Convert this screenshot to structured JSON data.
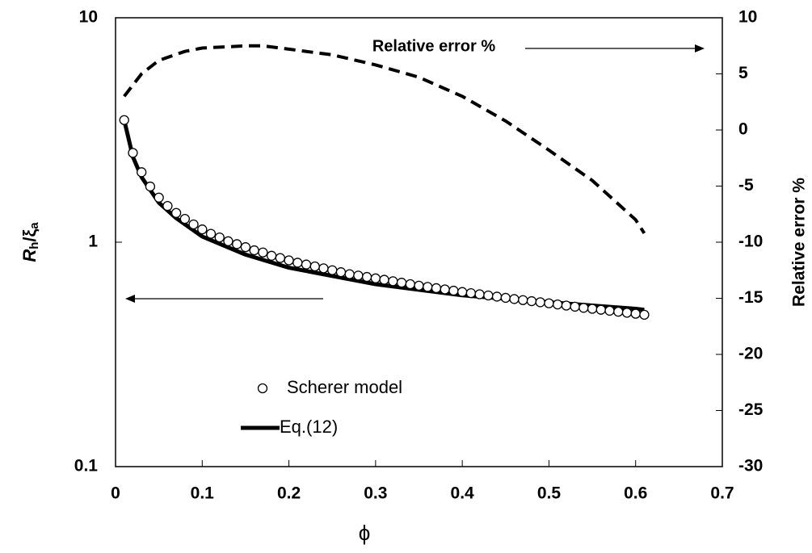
{
  "chart_data": {
    "type": "line",
    "xlabel": "ϕ",
    "ylabel": [
      "R",
      "h",
      "/ξ",
      "a"
    ],
    "y2label": "Relative error %",
    "annotations": [
      "Relative error %"
    ],
    "xlim": [
      0,
      0.7
    ],
    "xticks": [
      0,
      0.1,
      0.2,
      0.3,
      0.4,
      0.5,
      0.6,
      0.7
    ],
    "ylim": [
      0.1,
      10
    ],
    "yticks": [
      0.1,
      1,
      10
    ],
    "ylog": true,
    "y2lim": [
      -30,
      10
    ],
    "y2ticks": [
      -30,
      -25,
      -20,
      -15,
      -10,
      -5,
      0,
      5,
      10
    ],
    "legend": "lower-center",
    "series": [
      {
        "name": "Scherer model",
        "type": "scatter",
        "color": "#000000",
        "x": [
          0.01,
          0.02,
          0.03,
          0.04,
          0.05,
          0.06,
          0.07,
          0.08,
          0.09,
          0.1,
          0.11,
          0.12,
          0.13,
          0.14,
          0.15,
          0.16,
          0.17,
          0.18,
          0.19,
          0.2,
          0.21,
          0.22,
          0.23,
          0.24,
          0.25,
          0.26,
          0.27,
          0.28,
          0.29,
          0.3,
          0.31,
          0.32,
          0.33,
          0.34,
          0.35,
          0.36,
          0.37,
          0.38,
          0.39,
          0.4,
          0.41,
          0.42,
          0.43,
          0.44,
          0.45,
          0.46,
          0.47,
          0.48,
          0.49,
          0.5,
          0.51,
          0.52,
          0.53,
          0.54,
          0.55,
          0.56,
          0.57,
          0.58,
          0.59,
          0.6,
          0.61
        ],
        "values": [
          3.5,
          2.5,
          2.05,
          1.77,
          1.58,
          1.45,
          1.35,
          1.27,
          1.2,
          1.14,
          1.09,
          1.05,
          1.01,
          0.98,
          0.95,
          0.92,
          0.9,
          0.87,
          0.85,
          0.83,
          0.81,
          0.795,
          0.78,
          0.765,
          0.75,
          0.735,
          0.72,
          0.71,
          0.7,
          0.69,
          0.68,
          0.67,
          0.66,
          0.65,
          0.64,
          0.632,
          0.624,
          0.616,
          0.608,
          0.6,
          0.593,
          0.586,
          0.579,
          0.572,
          0.565,
          0.558,
          0.552,
          0.546,
          0.54,
          0.534,
          0.528,
          0.522,
          0.516,
          0.51,
          0.505,
          0.5,
          0.495,
          0.49,
          0.485,
          0.48,
          0.475
        ]
      },
      {
        "name": "Eq.(12)",
        "type": "line",
        "color": "#000000",
        "x": [
          0.01,
          0.02,
          0.03,
          0.05,
          0.07,
          0.1,
          0.15,
          0.2,
          0.3,
          0.4,
          0.5,
          0.6,
          0.61
        ],
        "values": [
          3.5,
          2.4,
          1.95,
          1.5,
          1.28,
          1.06,
          0.88,
          0.77,
          0.65,
          0.58,
          0.54,
          0.505,
          0.5
        ]
      },
      {
        "type": "line",
        "axis": "y2",
        "dash": true,
        "color": "#000000",
        "x": [
          0.01,
          0.03,
          0.05,
          0.08,
          0.1,
          0.15,
          0.17,
          0.2,
          0.25,
          0.3,
          0.35,
          0.4,
          0.45,
          0.5,
          0.55,
          0.6,
          0.61
        ],
        "values": [
          3,
          5,
          6.2,
          7,
          7.3,
          7.5,
          7.5,
          7.2,
          6.7,
          5.8,
          4.7,
          3,
          0.8,
          -1.8,
          -4.5,
          -8,
          -9.2
        ]
      }
    ]
  }
}
